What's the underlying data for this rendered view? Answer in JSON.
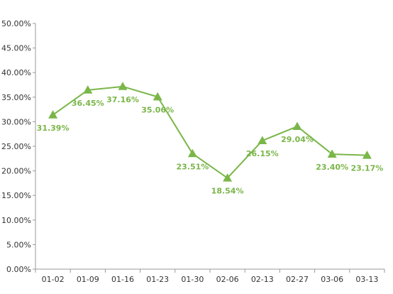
{
  "chart_data": {
    "type": "line",
    "categories": [
      "01-02",
      "01-09",
      "01-16",
      "01-23",
      "01-30",
      "02-06",
      "02-13",
      "02-27",
      "03-06",
      "03-13"
    ],
    "series": [
      {
        "values": [
          31.39,
          36.45,
          37.16,
          35.06,
          23.51,
          18.54,
          26.15,
          29.04,
          23.4,
          23.17
        ],
        "labels": [
          "31.39%",
          "36.45%",
          "37.16%",
          "35.06%",
          "23.51%",
          "18.54%",
          "26.15%",
          "29.04%",
          "23.40%",
          "23.17%"
        ],
        "color": "#7ab648",
        "marker": "triangle"
      }
    ],
    "ylim": [
      0,
      50
    ],
    "yticks": [
      0,
      5,
      10,
      15,
      20,
      25,
      30,
      35,
      40,
      45,
      50
    ],
    "ytick_labels": [
      "0.00%",
      "5.00%",
      "10.00%",
      "15.00%",
      "20.00%",
      "25.00%",
      "30.00%",
      "35.00%",
      "40.00%",
      "45.00%",
      "50.00%"
    ],
    "title": "",
    "xlabel": "",
    "ylabel": "",
    "grid": false,
    "legend": "none"
  }
}
